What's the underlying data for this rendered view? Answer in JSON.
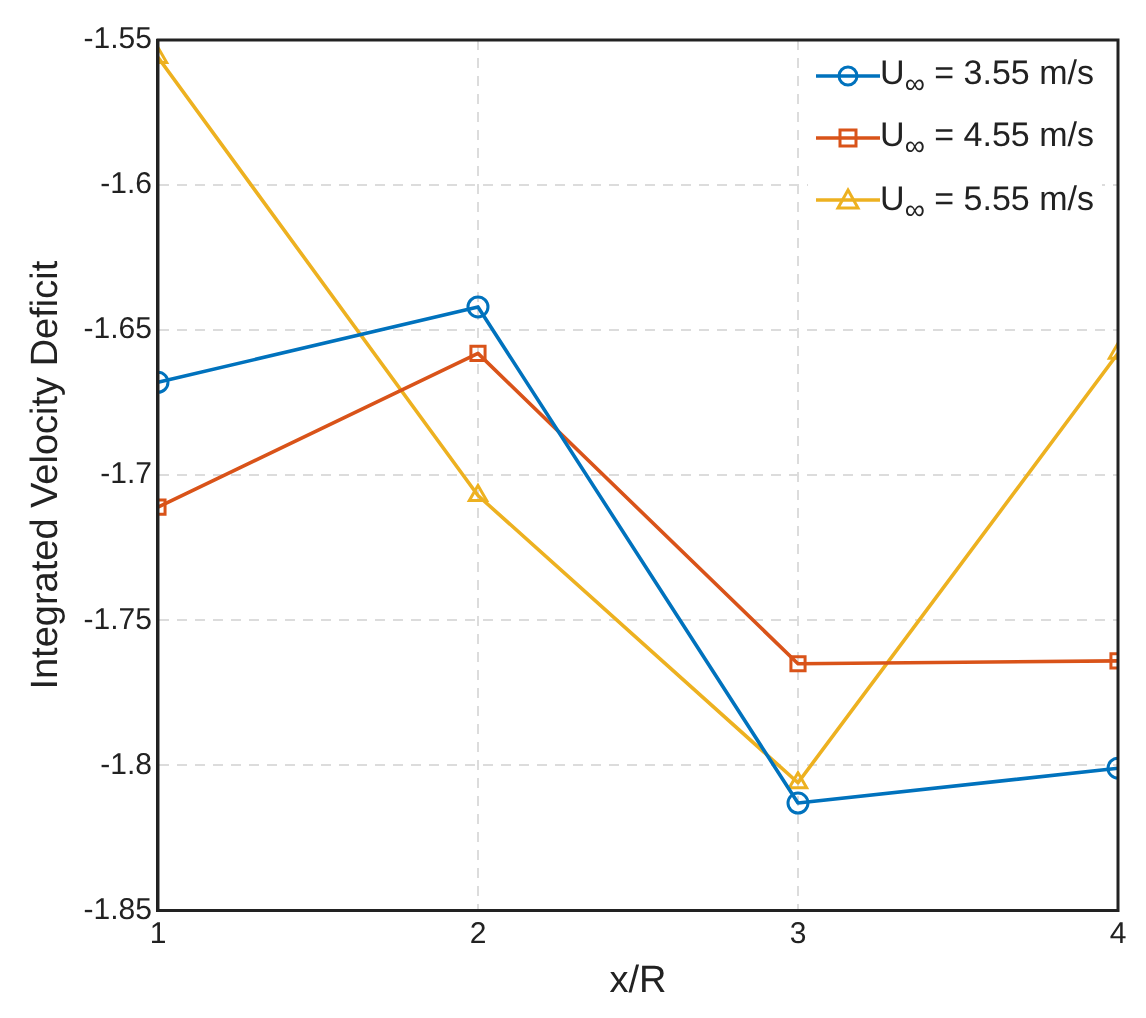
{
  "chart_data": {
    "type": "line",
    "xlabel": "x/R",
    "ylabel": "Integrated Velocity Deficit",
    "x": [
      1,
      2,
      3,
      4
    ],
    "series": [
      {
        "name": "U$_{∞}$ = 3.55 m/s",
        "color": "#0072bd",
        "marker": "circle",
        "values": [
          -1.668,
          -1.642,
          -1.813,
          -1.801
        ]
      },
      {
        "name": "U$_{∞}$ = 4.55 m/s",
        "color": "#d95319",
        "marker": "square",
        "values": [
          -1.711,
          -1.658,
          -1.765,
          -1.764
        ]
      },
      {
        "name": "U$_{∞}$ = 5.55 m/s",
        "color": "#edb120",
        "marker": "triangle",
        "values": [
          -1.556,
          -1.707,
          -1.806,
          -1.658
        ]
      }
    ],
    "xlim": [
      1,
      4
    ],
    "xticks": [
      1,
      2,
      3,
      4
    ],
    "ylim": [
      -1.85,
      -1.55
    ],
    "yticks": [
      -1.85,
      -1.8,
      -1.75,
      -1.7,
      -1.65,
      -1.6,
      -1.55
    ],
    "grid": true,
    "legend": "top right",
    "line_style": "solid"
  }
}
